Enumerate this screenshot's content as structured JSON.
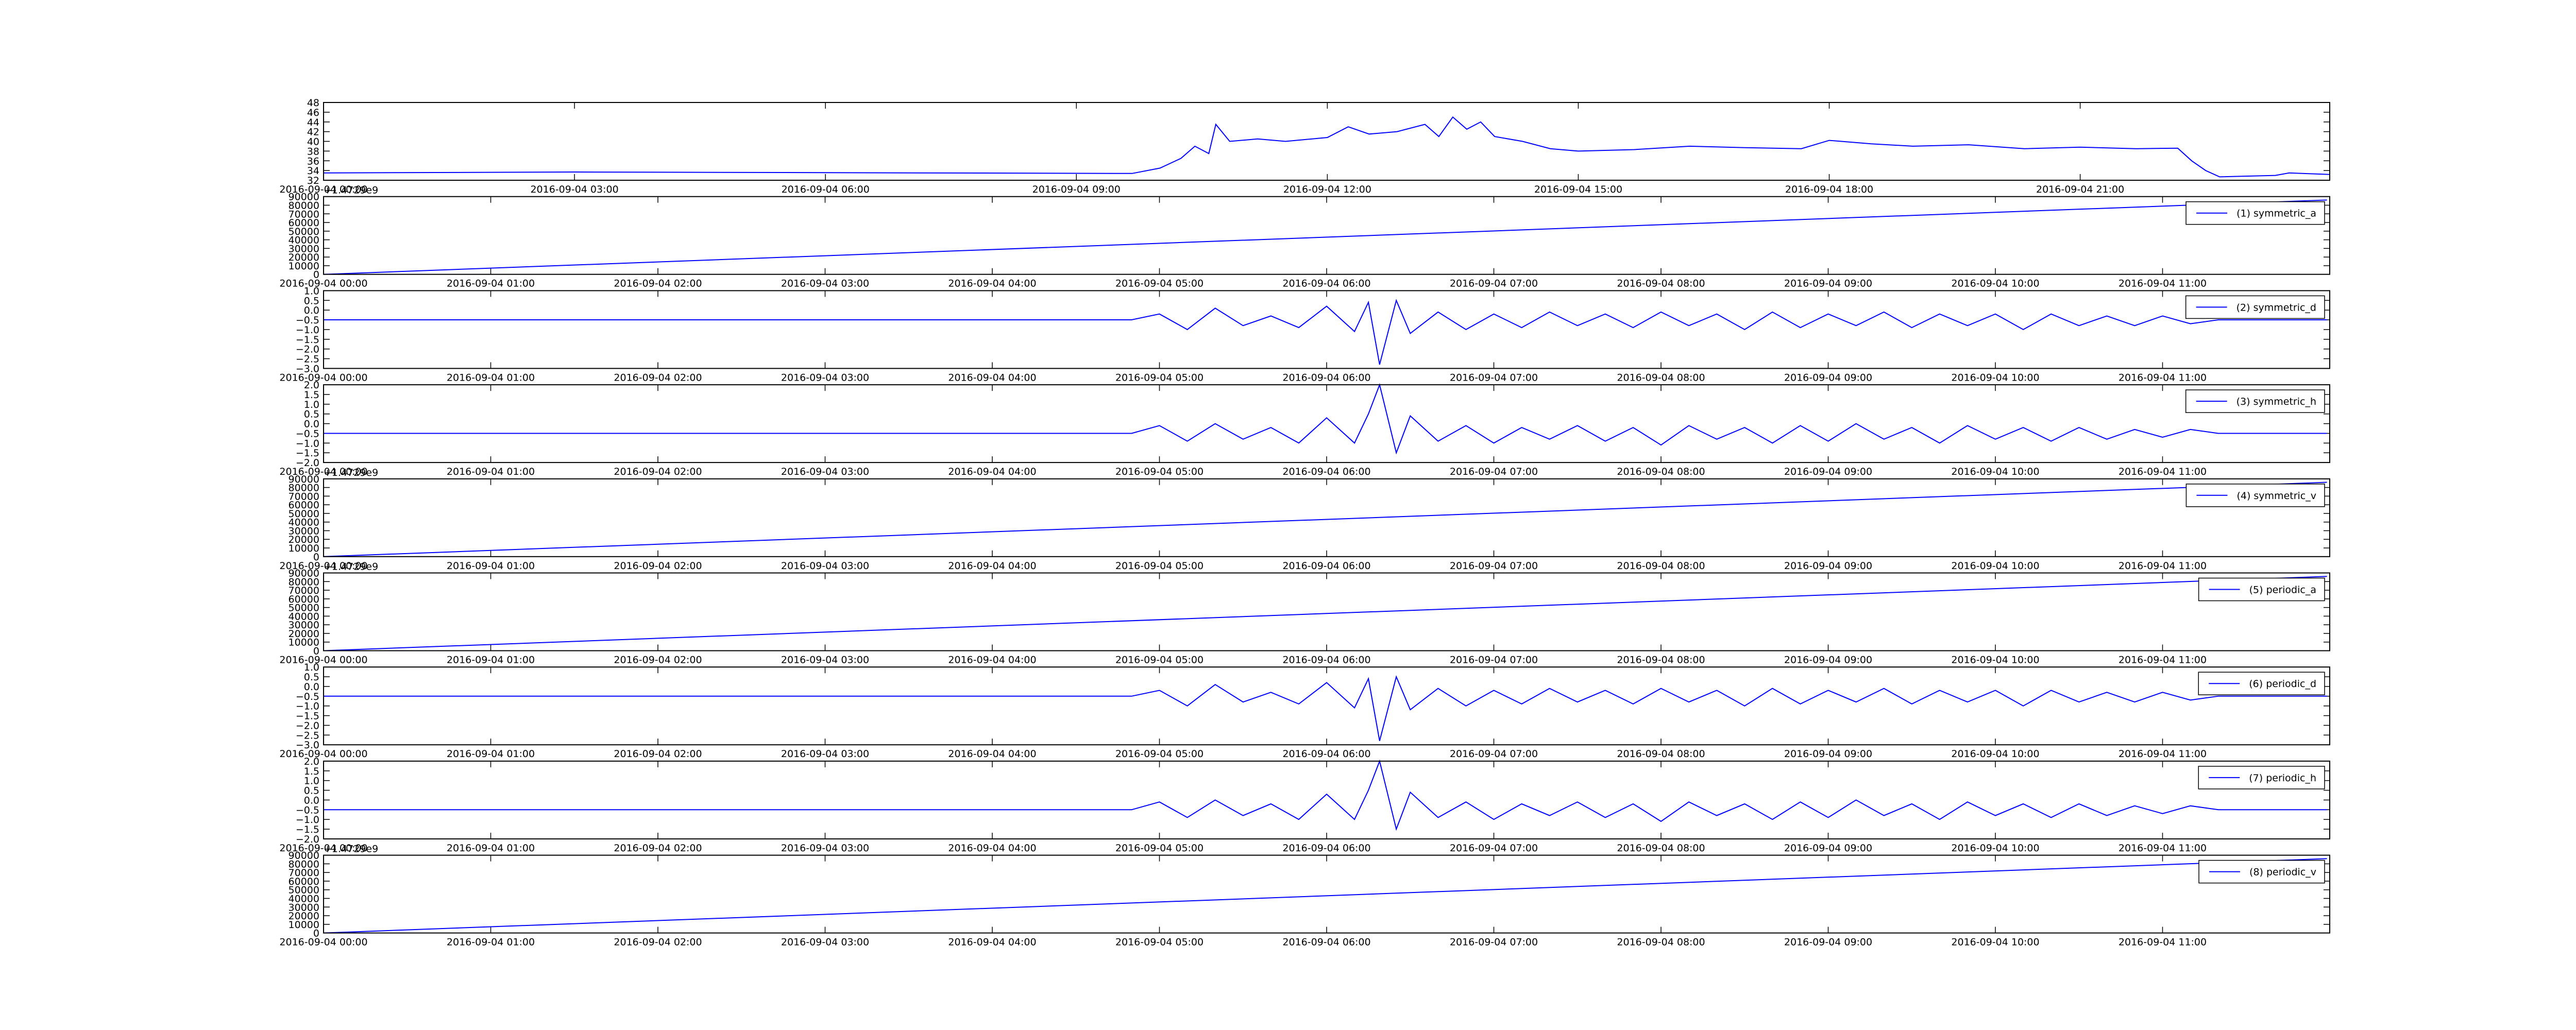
{
  "chart_data": [
    {
      "type": "line",
      "x": [
        "2016-09-04 00:00",
        "2016-09-04 03:00",
        "2016-09-04 09:40",
        "2016-09-04 10:00",
        "2016-09-04 10:15",
        "2016-09-04 10:25",
        "2016-09-04 10:35",
        "2016-09-04 10:40",
        "2016-09-04 10:50",
        "2016-09-04 11:10",
        "2016-09-04 11:30",
        "2016-09-04 12:00",
        "2016-09-04 12:15",
        "2016-09-04 12:30",
        "2016-09-04 12:50",
        "2016-09-04 13:10",
        "2016-09-04 13:20",
        "2016-09-04 13:30",
        "2016-09-04 13:40",
        "2016-09-04 13:50",
        "2016-09-04 14:00",
        "2016-09-04 14:20",
        "2016-09-04 14:40",
        "2016-09-04 15:00",
        "2016-09-04 15:40",
        "2016-09-04 16:20",
        "2016-09-04 17:00",
        "2016-09-04 17:40",
        "2016-09-04 18:00",
        "2016-09-04 18:30",
        "2016-09-04 19:00",
        "2016-09-04 19:40",
        "2016-09-04 20:20",
        "2016-09-04 21:00",
        "2016-09-04 21:40",
        "2016-09-04 22:10",
        "2016-09-04 22:20",
        "2016-09-04 22:30",
        "2016-09-04 22:40",
        "2016-09-04 23:20",
        "2016-09-04 23:30",
        "2016-09-04 23:59"
      ],
      "series": [
        {
          "color": "#0000ff",
          "values": [
            33.5,
            33.7,
            33.4,
            34.5,
            36.5,
            39,
            37.5,
            43.5,
            40,
            40.5,
            40,
            40.8,
            43,
            41.5,
            42,
            43.5,
            41,
            45,
            42.5,
            44,
            41,
            40,
            38.5,
            38,
            38.3,
            39,
            38.7,
            38.5,
            40.2,
            39.5,
            39,
            39.3,
            38.5,
            38.8,
            38.5,
            38.6,
            36,
            34,
            32.7,
            33,
            33.5,
            33.2
          ]
        }
      ],
      "xlim": [
        "2016-09-04 00:00",
        "2016-09-04 23:59"
      ],
      "xticks": [
        "2016-09-04 00:00",
        "2016-09-04 03:00",
        "2016-09-04 06:00",
        "2016-09-04 09:00",
        "2016-09-04 12:00",
        "2016-09-04 15:00",
        "2016-09-04 18:00",
        "2016-09-04 21:00"
      ],
      "ylim": [
        32,
        48
      ],
      "yticks": [
        32,
        34,
        36,
        38,
        40,
        42,
        44,
        46,
        48
      ]
    },
    {
      "type": "line",
      "offset_label": "+1.4729e9",
      "x": [
        "2016-09-04 00:00",
        "2016-09-04 11:59"
      ],
      "series": [
        {
          "name": "(1) symmetric_a",
          "color": "#0000ff",
          "values": [
            0,
            86000
          ]
        }
      ],
      "xlim": [
        "2016-09-04 00:00",
        "2016-09-04 12:00"
      ],
      "xticks": [
        "2016-09-04 00:00",
        "2016-09-04 01:00",
        "2016-09-04 02:00",
        "2016-09-04 03:00",
        "2016-09-04 04:00",
        "2016-09-04 05:00",
        "2016-09-04 06:00",
        "2016-09-04 07:00",
        "2016-09-04 08:00",
        "2016-09-04 09:00",
        "2016-09-04 10:00",
        "2016-09-04 11:00"
      ],
      "ylim": [
        0,
        90000
      ],
      "yticks": [
        0,
        10000,
        20000,
        30000,
        40000,
        50000,
        60000,
        70000,
        80000,
        90000
      ],
      "legend": "upper right"
    },
    {
      "type": "line",
      "x": [
        "2016-09-04 00:00",
        "2016-09-04 04:50",
        "2016-09-04 05:00",
        "2016-09-04 05:10",
        "2016-09-04 05:20",
        "2016-09-04 05:30",
        "2016-09-04 05:40",
        "2016-09-04 05:50",
        "2016-09-04 06:00",
        "2016-09-04 06:10",
        "2016-09-04 06:15",
        "2016-09-04 06:19",
        "2016-09-04 06:25",
        "2016-09-04 06:30",
        "2016-09-04 06:40",
        "2016-09-04 06:50",
        "2016-09-04 07:00",
        "2016-09-04 07:10",
        "2016-09-04 07:20",
        "2016-09-04 07:30",
        "2016-09-04 07:40",
        "2016-09-04 07:50",
        "2016-09-04 08:00",
        "2016-09-04 08:10",
        "2016-09-04 08:20",
        "2016-09-04 08:30",
        "2016-09-04 08:40",
        "2016-09-04 08:50",
        "2016-09-04 09:00",
        "2016-09-04 09:10",
        "2016-09-04 09:20",
        "2016-09-04 09:30",
        "2016-09-04 09:40",
        "2016-09-04 09:50",
        "2016-09-04 10:00",
        "2016-09-04 10:10",
        "2016-09-04 10:20",
        "2016-09-04 10:30",
        "2016-09-04 10:40",
        "2016-09-04 10:50",
        "2016-09-04 11:00",
        "2016-09-04 11:10",
        "2016-09-04 11:20",
        "2016-09-04 11:59"
      ],
      "series": [
        {
          "name": "(2) symmetric_d",
          "color": "#0000ff",
          "values": [
            -0.5,
            -0.5,
            -0.2,
            -1.0,
            0.1,
            -0.8,
            -0.3,
            -0.9,
            0.2,
            -1.1,
            0.4,
            -2.8,
            0.5,
            -1.2,
            -0.1,
            -1.0,
            -0.2,
            -0.9,
            -0.1,
            -0.8,
            -0.2,
            -0.9,
            -0.1,
            -0.8,
            -0.2,
            -1.0,
            -0.1,
            -0.9,
            -0.2,
            -0.8,
            -0.1,
            -0.9,
            -0.2,
            -0.8,
            -0.2,
            -1.0,
            -0.2,
            -0.8,
            -0.3,
            -0.8,
            -0.3,
            -0.7,
            -0.5,
            -0.5
          ]
        }
      ],
      "xlim": [
        "2016-09-04 00:00",
        "2016-09-04 12:00"
      ],
      "xticks": [
        "2016-09-04 00:00",
        "2016-09-04 01:00",
        "2016-09-04 02:00",
        "2016-09-04 03:00",
        "2016-09-04 04:00",
        "2016-09-04 05:00",
        "2016-09-04 06:00",
        "2016-09-04 07:00",
        "2016-09-04 08:00",
        "2016-09-04 09:00",
        "2016-09-04 10:00",
        "2016-09-04 11:00"
      ],
      "ylim": [
        -3,
        1
      ],
      "yticks": [
        {
          "value": -3,
          "label": "−3.0"
        },
        {
          "value": -2.5,
          "label": "−2.5"
        },
        {
          "value": -2,
          "label": "−2.0"
        },
        {
          "value": -1.5,
          "label": "−1.5"
        },
        {
          "value": -1,
          "label": "−1.0"
        },
        {
          "value": -0.5,
          "label": "−0.5"
        },
        {
          "value": 0,
          "label": "0.0"
        },
        0.5,
        {
          "value": 1,
          "label": "1.0"
        }
      ],
      "legend": "upper right"
    },
    {
      "type": "line",
      "x": [
        "2016-09-04 00:00",
        "2016-09-04 04:50",
        "2016-09-04 05:00",
        "2016-09-04 05:10",
        "2016-09-04 05:20",
        "2016-09-04 05:30",
        "2016-09-04 05:40",
        "2016-09-04 05:50",
        "2016-09-04 06:00",
        "2016-09-04 06:10",
        "2016-09-04 06:15",
        "2016-09-04 06:19",
        "2016-09-04 06:25",
        "2016-09-04 06:30",
        "2016-09-04 06:40",
        "2016-09-04 06:50",
        "2016-09-04 07:00",
        "2016-09-04 07:10",
        "2016-09-04 07:20",
        "2016-09-04 07:30",
        "2016-09-04 07:40",
        "2016-09-04 07:50",
        "2016-09-04 08:00",
        "2016-09-04 08:10",
        "2016-09-04 08:20",
        "2016-09-04 08:30",
        "2016-09-04 08:40",
        "2016-09-04 08:50",
        "2016-09-04 09:00",
        "2016-09-04 09:10",
        "2016-09-04 09:20",
        "2016-09-04 09:30",
        "2016-09-04 09:40",
        "2016-09-04 09:50",
        "2016-09-04 10:00",
        "2016-09-04 10:10",
        "2016-09-04 10:20",
        "2016-09-04 10:30",
        "2016-09-04 10:40",
        "2016-09-04 10:50",
        "2016-09-04 11:00",
        "2016-09-04 11:10",
        "2016-09-04 11:20",
        "2016-09-04 11:59"
      ],
      "series": [
        {
          "name": "(3) symmetric_h",
          "color": "#0000ff",
          "values": [
            -0.5,
            -0.5,
            -0.1,
            -0.9,
            0.0,
            -0.8,
            -0.2,
            -1.0,
            0.3,
            -1.0,
            0.5,
            2.0,
            -1.5,
            0.4,
            -0.9,
            -0.1,
            -1.0,
            -0.2,
            -0.8,
            -0.1,
            -0.9,
            -0.2,
            -1.1,
            -0.1,
            -0.8,
            -0.2,
            -1.0,
            -0.1,
            -0.9,
            0.0,
            -0.8,
            -0.2,
            -1.0,
            -0.1,
            -0.8,
            -0.2,
            -0.9,
            -0.2,
            -0.8,
            -0.3,
            -0.7,
            -0.3,
            -0.5,
            -0.5
          ]
        }
      ],
      "xlim": [
        "2016-09-04 00:00",
        "2016-09-04 12:00"
      ],
      "xticks": [
        "2016-09-04 00:00",
        "2016-09-04 01:00",
        "2016-09-04 02:00",
        "2016-09-04 03:00",
        "2016-09-04 04:00",
        "2016-09-04 05:00",
        "2016-09-04 06:00",
        "2016-09-04 07:00",
        "2016-09-04 08:00",
        "2016-09-04 09:00",
        "2016-09-04 10:00",
        "2016-09-04 11:00"
      ],
      "ylim": [
        -2,
        2
      ],
      "yticks": [
        {
          "value": -2,
          "label": "−2.0"
        },
        {
          "value": -1.5,
          "label": "−1.5"
        },
        {
          "value": -1,
          "label": "−1.0"
        },
        {
          "value": -0.5,
          "label": "−0.5"
        },
        {
          "value": 0,
          "label": "0.0"
        },
        0.5,
        {
          "value": 1,
          "label": "1.0"
        },
        1.5,
        {
          "value": 2,
          "label": "2.0"
        }
      ],
      "legend": "upper right"
    },
    {
      "type": "line",
      "offset_label": "+1.4729e9",
      "x": [
        "2016-09-04 00:00",
        "2016-09-04 11:59"
      ],
      "series": [
        {
          "name": "(4) symmetric_v",
          "color": "#0000ff",
          "values": [
            0,
            86000
          ]
        }
      ],
      "xlim": [
        "2016-09-04 00:00",
        "2016-09-04 12:00"
      ],
      "xticks": [
        "2016-09-04 00:00",
        "2016-09-04 01:00",
        "2016-09-04 02:00",
        "2016-09-04 03:00",
        "2016-09-04 04:00",
        "2016-09-04 05:00",
        "2016-09-04 06:00",
        "2016-09-04 07:00",
        "2016-09-04 08:00",
        "2016-09-04 09:00",
        "2016-09-04 10:00",
        "2016-09-04 11:00"
      ],
      "ylim": [
        0,
        90000
      ],
      "yticks": [
        0,
        10000,
        20000,
        30000,
        40000,
        50000,
        60000,
        70000,
        80000,
        90000
      ],
      "legend": "upper right"
    },
    {
      "type": "line",
      "offset_label": "+1.4729e9",
      "x": [
        "2016-09-04 00:00",
        "2016-09-04 11:59"
      ],
      "series": [
        {
          "name": "(5) periodic_a",
          "color": "#0000ff",
          "values": [
            0,
            86000
          ]
        }
      ],
      "xlim": [
        "2016-09-04 00:00",
        "2016-09-04 12:00"
      ],
      "xticks": [
        "2016-09-04 00:00",
        "2016-09-04 01:00",
        "2016-09-04 02:00",
        "2016-09-04 03:00",
        "2016-09-04 04:00",
        "2016-09-04 05:00",
        "2016-09-04 06:00",
        "2016-09-04 07:00",
        "2016-09-04 08:00",
        "2016-09-04 09:00",
        "2016-09-04 10:00",
        "2016-09-04 11:00"
      ],
      "ylim": [
        0,
        90000
      ],
      "yticks": [
        0,
        10000,
        20000,
        30000,
        40000,
        50000,
        60000,
        70000,
        80000,
        90000
      ],
      "legend": "upper right"
    },
    {
      "type": "line",
      "x": [
        "2016-09-04 00:00",
        "2016-09-04 04:50",
        "2016-09-04 05:00",
        "2016-09-04 05:10",
        "2016-09-04 05:20",
        "2016-09-04 05:30",
        "2016-09-04 05:40",
        "2016-09-04 05:50",
        "2016-09-04 06:00",
        "2016-09-04 06:10",
        "2016-09-04 06:15",
        "2016-09-04 06:19",
        "2016-09-04 06:25",
        "2016-09-04 06:30",
        "2016-09-04 06:40",
        "2016-09-04 06:50",
        "2016-09-04 07:00",
        "2016-09-04 07:10",
        "2016-09-04 07:20",
        "2016-09-04 07:30",
        "2016-09-04 07:40",
        "2016-09-04 07:50",
        "2016-09-04 08:00",
        "2016-09-04 08:10",
        "2016-09-04 08:20",
        "2016-09-04 08:30",
        "2016-09-04 08:40",
        "2016-09-04 08:50",
        "2016-09-04 09:00",
        "2016-09-04 09:10",
        "2016-09-04 09:20",
        "2016-09-04 09:30",
        "2016-09-04 09:40",
        "2016-09-04 09:50",
        "2016-09-04 10:00",
        "2016-09-04 10:10",
        "2016-09-04 10:20",
        "2016-09-04 10:30",
        "2016-09-04 10:40",
        "2016-09-04 10:50",
        "2016-09-04 11:00",
        "2016-09-04 11:10",
        "2016-09-04 11:20",
        "2016-09-04 11:59"
      ],
      "series": [
        {
          "name": "(6) periodic_d",
          "color": "#0000ff",
          "values": [
            -0.5,
            -0.5,
            -0.2,
            -1.0,
            0.1,
            -0.8,
            -0.3,
            -0.9,
            0.2,
            -1.1,
            0.4,
            -2.8,
            0.5,
            -1.2,
            -0.1,
            -1.0,
            -0.2,
            -0.9,
            -0.1,
            -0.8,
            -0.2,
            -0.9,
            -0.1,
            -0.8,
            -0.2,
            -1.0,
            -0.1,
            -0.9,
            -0.2,
            -0.8,
            -0.1,
            -0.9,
            -0.2,
            -0.8,
            -0.2,
            -1.0,
            -0.2,
            -0.8,
            -0.3,
            -0.8,
            -0.3,
            -0.7,
            -0.5,
            -0.5
          ]
        }
      ],
      "xlim": [
        "2016-09-04 00:00",
        "2016-09-04 12:00"
      ],
      "xticks": [
        "2016-09-04 00:00",
        "2016-09-04 01:00",
        "2016-09-04 02:00",
        "2016-09-04 03:00",
        "2016-09-04 04:00",
        "2016-09-04 05:00",
        "2016-09-04 06:00",
        "2016-09-04 07:00",
        "2016-09-04 08:00",
        "2016-09-04 09:00",
        "2016-09-04 10:00",
        "2016-09-04 11:00"
      ],
      "ylim": [
        -3,
        1
      ],
      "yticks": [
        {
          "value": -3,
          "label": "−3.0"
        },
        {
          "value": -2.5,
          "label": "−2.5"
        },
        {
          "value": -2,
          "label": "−2.0"
        },
        {
          "value": -1.5,
          "label": "−1.5"
        },
        {
          "value": -1,
          "label": "−1.0"
        },
        {
          "value": -0.5,
          "label": "−0.5"
        },
        {
          "value": 0,
          "label": "0.0"
        },
        0.5,
        {
          "value": 1,
          "label": "1.0"
        }
      ],
      "legend": "upper right"
    },
    {
      "type": "line",
      "x": [
        "2016-09-04 00:00",
        "2016-09-04 04:50",
        "2016-09-04 05:00",
        "2016-09-04 05:10",
        "2016-09-04 05:20",
        "2016-09-04 05:30",
        "2016-09-04 05:40",
        "2016-09-04 05:50",
        "2016-09-04 06:00",
        "2016-09-04 06:10",
        "2016-09-04 06:15",
        "2016-09-04 06:19",
        "2016-09-04 06:25",
        "2016-09-04 06:30",
        "2016-09-04 06:40",
        "2016-09-04 06:50",
        "2016-09-04 07:00",
        "2016-09-04 07:10",
        "2016-09-04 07:20",
        "2016-09-04 07:30",
        "2016-09-04 07:40",
        "2016-09-04 07:50",
        "2016-09-04 08:00",
        "2016-09-04 08:10",
        "2016-09-04 08:20",
        "2016-09-04 08:30",
        "2016-09-04 08:40",
        "2016-09-04 08:50",
        "2016-09-04 09:00",
        "2016-09-04 09:10",
        "2016-09-04 09:20",
        "2016-09-04 09:30",
        "2016-09-04 09:40",
        "2016-09-04 09:50",
        "2016-09-04 10:00",
        "2016-09-04 10:10",
        "2016-09-04 10:20",
        "2016-09-04 10:30",
        "2016-09-04 10:40",
        "2016-09-04 10:50",
        "2016-09-04 11:00",
        "2016-09-04 11:10",
        "2016-09-04 11:20",
        "2016-09-04 11:59"
      ],
      "series": [
        {
          "name": "(7) periodic_h",
          "color": "#0000ff",
          "values": [
            -0.5,
            -0.5,
            -0.1,
            -0.9,
            0.0,
            -0.8,
            -0.2,
            -1.0,
            0.3,
            -1.0,
            0.5,
            2.0,
            -1.5,
            0.4,
            -0.9,
            -0.1,
            -1.0,
            -0.2,
            -0.8,
            -0.1,
            -0.9,
            -0.2,
            -1.1,
            -0.1,
            -0.8,
            -0.2,
            -1.0,
            -0.1,
            -0.9,
            0.0,
            -0.8,
            -0.2,
            -1.0,
            -0.1,
            -0.8,
            -0.2,
            -0.9,
            -0.2,
            -0.8,
            -0.3,
            -0.7,
            -0.3,
            -0.5,
            -0.5
          ]
        }
      ],
      "xlim": [
        "2016-09-04 00:00",
        "2016-09-04 12:00"
      ],
      "xticks": [
        "2016-09-04 00:00",
        "2016-09-04 01:00",
        "2016-09-04 02:00",
        "2016-09-04 03:00",
        "2016-09-04 04:00",
        "2016-09-04 05:00",
        "2016-09-04 06:00",
        "2016-09-04 07:00",
        "2016-09-04 08:00",
        "2016-09-04 09:00",
        "2016-09-04 10:00",
        "2016-09-04 11:00"
      ],
      "ylim": [
        -2,
        2
      ],
      "yticks": [
        {
          "value": -2,
          "label": "−2.0"
        },
        {
          "value": -1.5,
          "label": "−1.5"
        },
        {
          "value": -1,
          "label": "−1.0"
        },
        {
          "value": -0.5,
          "label": "−0.5"
        },
        {
          "value": 0,
          "label": "0.0"
        },
        0.5,
        {
          "value": 1,
          "label": "1.0"
        },
        1.5,
        {
          "value": 2,
          "label": "2.0"
        }
      ],
      "legend": "upper right"
    },
    {
      "type": "line",
      "offset_label": "+1.4729e9",
      "x": [
        "2016-09-04 00:00",
        "2016-09-04 11:59"
      ],
      "series": [
        {
          "name": "(8) periodic_v",
          "color": "#0000ff",
          "values": [
            0,
            86000
          ]
        }
      ],
      "xlim": [
        "2016-09-04 00:00",
        "2016-09-04 12:00"
      ],
      "xticks": [
        "2016-09-04 00:00",
        "2016-09-04 01:00",
        "2016-09-04 02:00",
        "2016-09-04 03:00",
        "2016-09-04 04:00",
        "2016-09-04 05:00",
        "2016-09-04 06:00",
        "2016-09-04 07:00",
        "2016-09-04 08:00",
        "2016-09-04 09:00",
        "2016-09-04 10:00",
        "2016-09-04 11:00"
      ],
      "ylim": [
        0,
        90000
      ],
      "yticks": [
        0,
        10000,
        20000,
        30000,
        40000,
        50000,
        60000,
        70000,
        80000,
        90000
      ],
      "legend": "upper right"
    }
  ]
}
